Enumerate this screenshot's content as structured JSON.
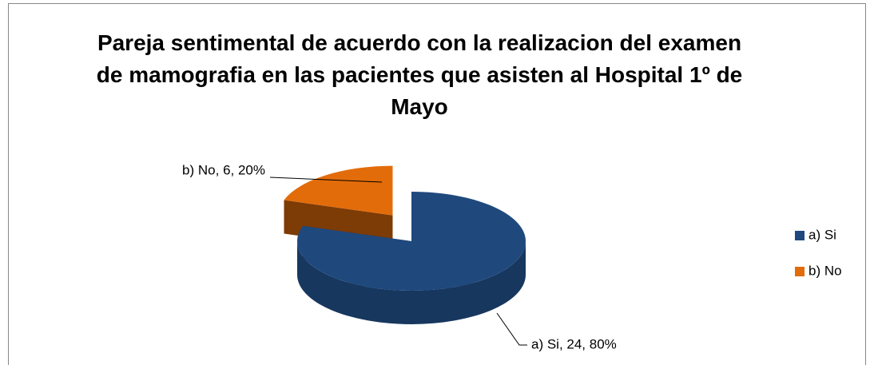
{
  "chart_data": {
    "type": "pie",
    "title": "Pareja sentimental de acuerdo con la realizacion del examen de mamografia en las pacientes que asisten al Hospital 1º de Mayo",
    "categories": [
      "a) Si",
      "b) No"
    ],
    "values": [
      24,
      6
    ],
    "value_labels": [
      "a) Si, 24, 80%",
      "b) No, 6, 20%"
    ],
    "colors": [
      "#1f497d",
      "#e36c0a"
    ],
    "legend": "right"
  }
}
